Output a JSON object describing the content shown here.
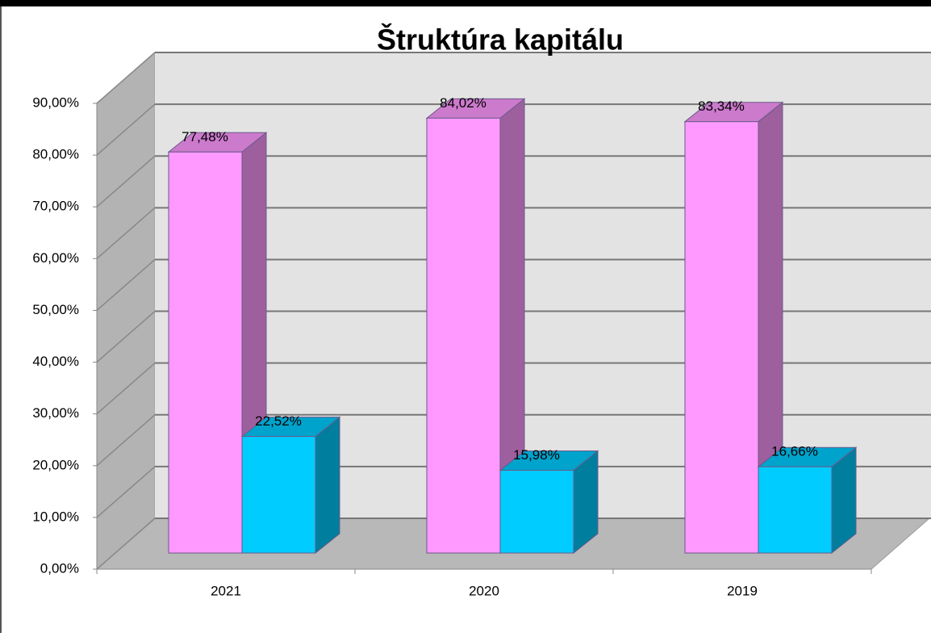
{
  "chart_data": {
    "type": "bar3d",
    "title": "Štruktúra kapitálu",
    "categories": [
      "2021",
      "2020",
      "2019"
    ],
    "series": [
      {
        "color": "#ff99ff",
        "values": [
          77.48,
          84.02,
          83.34
        ],
        "value_labels": [
          "77,48%",
          "84,02%",
          "83,34%"
        ]
      },
      {
        "color": "#00ccff",
        "values": [
          22.52,
          15.98,
          16.66
        ],
        "value_labels": [
          "22,52%",
          "15,98%",
          "16,66%"
        ]
      }
    ],
    "ylim": [
      0,
      90
    ],
    "yticks": [
      {
        "value": 0,
        "label": "0,00%"
      },
      {
        "value": 10,
        "label": "10,00%"
      },
      {
        "value": 20,
        "label": "20,00%"
      },
      {
        "value": 30,
        "label": "30,00%"
      },
      {
        "value": 40,
        "label": "40,00%"
      },
      {
        "value": 50,
        "label": "50,00%"
      },
      {
        "value": 60,
        "label": "60,00%"
      },
      {
        "value": 70,
        "label": "70,00%"
      },
      {
        "value": 80,
        "label": "80,00%"
      },
      {
        "value": 90,
        "label": "90,00%"
      }
    ],
    "grid": true
  }
}
